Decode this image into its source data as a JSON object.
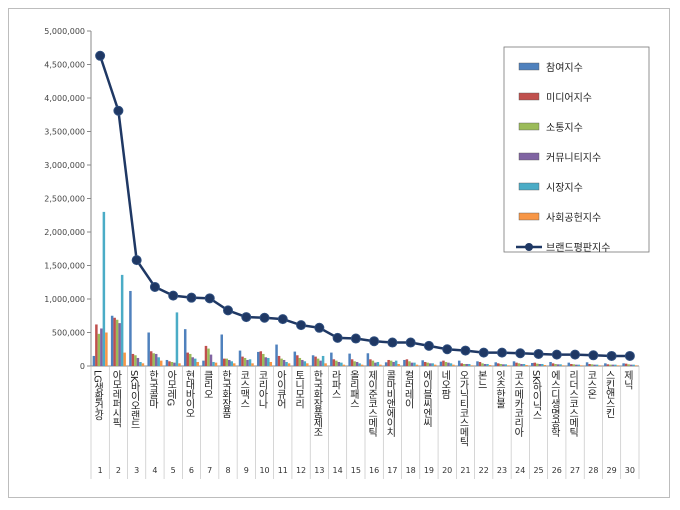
{
  "chart_data": {
    "type": "bar",
    "title": "",
    "xlabel": "",
    "ylabel": "",
    "ylim": [
      0,
      5000000
    ],
    "yticks": [
      "0",
      "500,000",
      "1,000,000",
      "1,500,000",
      "2,000,000",
      "2,500,000",
      "3,000,000",
      "3,500,000",
      "4,000,000",
      "4,500,000",
      "5,000,000"
    ],
    "ranks": [
      "1",
      "2",
      "3",
      "4",
      "5",
      "6",
      "7",
      "8",
      "9",
      "10",
      "11",
      "12",
      "13",
      "14",
      "15",
      "16",
      "17",
      "18",
      "19",
      "20",
      "21",
      "22",
      "23",
      "24",
      "25",
      "26",
      "27",
      "28",
      "29",
      "30"
    ],
    "categories": [
      "LG생활건강",
      "아모레퍼시픽",
      "SK바이오랜드",
      "한국콜마",
      "아모레G",
      "현대바이오",
      "클리오",
      "한국화장품",
      "코스맥스",
      "코리아나",
      "아이큐어",
      "토니모리",
      "한국화장품제조",
      "라파스",
      "올리패스",
      "제이준코스메틱",
      "콜마비앤에이치",
      "컬러레이",
      "에이블씨엔씨",
      "네오팜",
      "오가닉티코스메틱",
      "본느",
      "잇츠한불",
      "코스메카코리아",
      "SK하이닉스",
      "에스디생명공학",
      "리더스코스메틱",
      "코스온",
      "스킨앤스킨",
      "제닉"
    ],
    "legend_position": "top-right",
    "grid": false,
    "series": [
      {
        "name": "참여지수",
        "color": "#4f81bd",
        "type": "bar",
        "values": [
          150000,
          750000,
          1120000,
          500000,
          90000,
          550000,
          80000,
          470000,
          230000,
          210000,
          320000,
          215000,
          160000,
          200000,
          185000,
          190000,
          55000,
          90000,
          85000,
          65000,
          80000,
          70000,
          55000,
          70000,
          45000,
          60000,
          50000,
          55000,
          40000,
          40000
        ]
      },
      {
        "name": "미디어지수",
        "color": "#c0504d",
        "type": "bar",
        "values": [
          620000,
          720000,
          180000,
          220000,
          70000,
          200000,
          300000,
          110000,
          140000,
          220000,
          150000,
          160000,
          140000,
          100000,
          100000,
          100000,
          90000,
          100000,
          60000,
          80000,
          40000,
          60000,
          40000,
          50000,
          50000,
          40000,
          30000,
          30000,
          25000,
          35000
        ]
      },
      {
        "name": "소통지수",
        "color": "#9bbb59",
        "type": "bar",
        "values": [
          480000,
          690000,
          160000,
          190000,
          60000,
          180000,
          260000,
          110000,
          120000,
          180000,
          110000,
          120000,
          110000,
          80000,
          70000,
          80000,
          80000,
          70000,
          50000,
          60000,
          30000,
          40000,
          30000,
          40000,
          35000,
          30000,
          25000,
          25000,
          20000,
          25000
        ]
      },
      {
        "name": "커뮤니티지수",
        "color": "#8064a2",
        "type": "bar",
        "values": [
          560000,
          640000,
          120000,
          180000,
          50000,
          130000,
          170000,
          90000,
          90000,
          130000,
          90000,
          90000,
          80000,
          60000,
          60000,
          50000,
          60000,
          50000,
          40000,
          50000,
          30000,
          30000,
          25000,
          30000,
          30000,
          25000,
          20000,
          20000,
          20000,
          20000
        ]
      },
      {
        "name": "시장지수",
        "color": "#4bacc6",
        "type": "bar",
        "values": [
          2300000,
          1360000,
          60000,
          130000,
          800000,
          110000,
          60000,
          70000,
          100000,
          120000,
          60000,
          70000,
          150000,
          50000,
          40000,
          60000,
          80000,
          50000,
          40000,
          40000,
          30000,
          30000,
          25000,
          30000,
          30000,
          25000,
          20000,
          20000,
          20000,
          20000
        ]
      },
      {
        "name": "사회공헌지수",
        "color": "#f79646",
        "type": "bar",
        "values": [
          500000,
          200000,
          40000,
          80000,
          40000,
          60000,
          50000,
          40000,
          40000,
          60000,
          40000,
          40000,
          40000,
          20000,
          20000,
          20000,
          30000,
          20000,
          20000,
          20000,
          10000,
          15000,
          10000,
          15000,
          15000,
          10000,
          10000,
          10000,
          10000,
          10000
        ]
      },
      {
        "name": "브랜드평판지수",
        "color": "#1f3864",
        "type": "line",
        "values": [
          4630000,
          3810000,
          1580000,
          1180000,
          1050000,
          1020000,
          1010000,
          830000,
          730000,
          720000,
          700000,
          610000,
          570000,
          420000,
          410000,
          370000,
          350000,
          350000,
          300000,
          250000,
          230000,
          200000,
          200000,
          190000,
          180000,
          170000,
          170000,
          160000,
          150000,
          150000
        ]
      }
    ]
  }
}
